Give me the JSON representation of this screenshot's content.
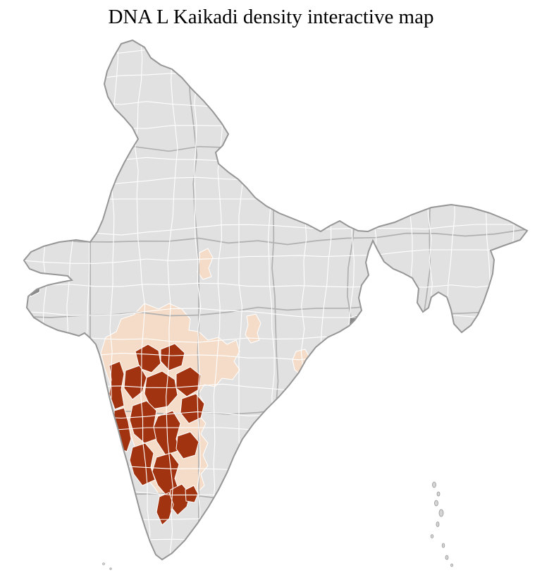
{
  "page": {
    "title": "DNA L Kaikadi density interactive map"
  },
  "map": {
    "colors": {
      "background": "#ffffff",
      "district_base": "#e1e1e1",
      "district_border": "#ffffff",
      "state_border": "#b0b0b0",
      "country_outline": "#969696",
      "density_low": "#f4dcc8",
      "density_high": "#a23310",
      "no_data": "#8a8a8a",
      "island": "#d4d4d4"
    }
  }
}
